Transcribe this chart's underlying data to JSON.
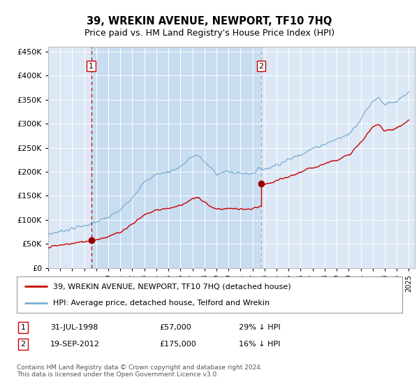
{
  "title": "39, WREKIN AVENUE, NEWPORT, TF10 7HQ",
  "subtitle": "Price paid vs. HM Land Registry's House Price Index (HPI)",
  "plot_bg_color": "#dce8f5",
  "shaded_region_color": "#c8ddf0",
  "ylim": [
    0,
    460000
  ],
  "yticks": [
    0,
    50000,
    100000,
    150000,
    200000,
    250000,
    300000,
    350000,
    400000,
    450000
  ],
  "xlim_start": 1995.0,
  "xlim_end": 2025.5,
  "sale1_date": 1998.58,
  "sale1_price": 57000,
  "sale1_label": "1",
  "sale2_date": 2012.72,
  "sale2_price": 175000,
  "sale2_label": "2",
  "legend_line1": "39, WREKIN AVENUE, NEWPORT, TF10 7HQ (detached house)",
  "legend_line2": "HPI: Average price, detached house, Telford and Wrekin",
  "table_row1_num": "1",
  "table_row1_date": "31-JUL-1998",
  "table_row1_price": "£57,000",
  "table_row1_hpi": "29% ↓ HPI",
  "table_row2_num": "2",
  "table_row2_date": "19-SEP-2012",
  "table_row2_price": "£175,000",
  "table_row2_hpi": "16% ↓ HPI",
  "footnote": "Contains HM Land Registry data © Crown copyright and database right 2024.\nThis data is licensed under the Open Government Licence v3.0.",
  "line_color_red": "#cc0000",
  "line_color_blue": "#7aafd4",
  "marker_color_red": "#990000",
  "dashed_line1_color": "#cc0000",
  "dashed_line2_color": "#aaaaaa"
}
